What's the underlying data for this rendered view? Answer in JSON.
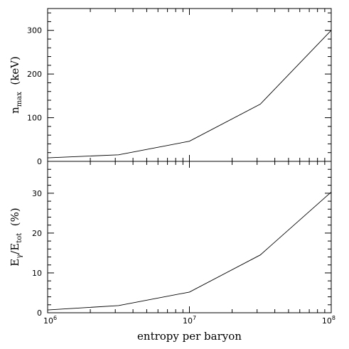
{
  "chart_data": [
    {
      "type": "line",
      "panel": "top",
      "ylabel": {
        "main": "n",
        "sub": "max",
        "rest": "  (keV)"
      },
      "yscale": "linear",
      "ylim": [
        0,
        350
      ],
      "yticks": [
        0,
        100,
        200,
        300
      ],
      "ytick_labels": [
        "0",
        "100",
        "200",
        "300"
      ],
      "xscale": "log",
      "xlim": [
        1000000,
        100000000
      ],
      "x": [
        1000000,
        3160000,
        10000000,
        31600000,
        100000000
      ],
      "values": [
        8,
        15,
        46,
        131,
        300
      ]
    },
    {
      "type": "line",
      "panel": "bottom",
      "ylabel": {
        "main": "E",
        "sub1": "γ",
        "mid": "/E",
        "sub2": "tot",
        "rest": "  (%)"
      },
      "yscale": "linear",
      "ylim": [
        0,
        38
      ],
      "yticks": [
        0,
        10,
        20,
        30
      ],
      "ytick_labels": [
        "0",
        "10",
        "20",
        "30"
      ],
      "xscale": "log",
      "xlim": [
        1000000,
        100000000
      ],
      "x": [
        1000000,
        3160000,
        10000000,
        31600000,
        100000000
      ],
      "values": [
        0.7,
        1.8,
        5.2,
        14.5,
        30.3
      ],
      "xlabel": "entropy per baryon",
      "xtick_labels": [
        {
          "base": "10",
          "exp": "6"
        },
        {
          "base": "10",
          "exp": "7"
        },
        {
          "base": "10",
          "exp": "8"
        }
      ]
    }
  ]
}
